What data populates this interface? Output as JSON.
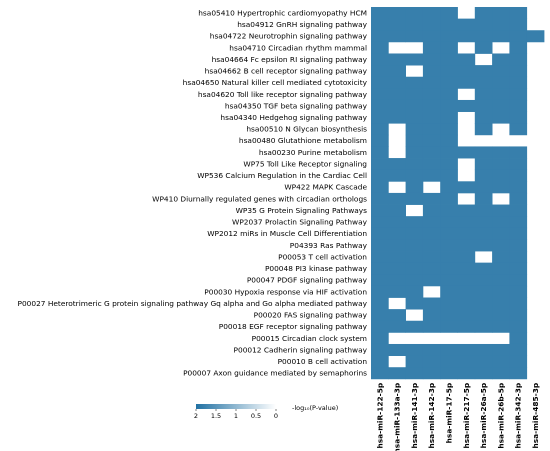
{
  "chart_data": {
    "type": "heatmap",
    "rows": [
      "hsa05410 Hypertrophic cardiomyopathy HCM",
      "hsa04912 GnRH signaling pathway",
      "hsa04722 Neurotrophin signaling pathway",
      "hsa04710 Circadian rhythm mammal",
      "hsa04664 Fc epsilon RI signaling pathway",
      "hsa04662 B cell receptor signaling pathway",
      "hsa04650 Natural killer cell mediated cytotoxicity",
      "hsa04620 Toll like receptor signaling pathway",
      "hsa04350 TGF beta signaling pathway",
      "hsa04340 Hedgehog signaling pathway",
      "hsa00510 N Glycan biosynthesis",
      "hsa00480 Glutathione metabolism",
      "hsa00230 Purine metabolism",
      "WP75 Toll Like Receptor signaling",
      "WP536 Calcium Regulation in the Cardiac Cell",
      "WP422 MAPK Cascade",
      "WP410 Diurnally regulated genes with circadian orthologs",
      "WP35 G Protein Signaling Pathways",
      "WP2037 Prolactin Signaling Pathway",
      "WP2012 miRs in Muscle Cell Differentiation",
      "P04393 Ras Pathway",
      "P00053 T cell activation",
      "P00048 PI3 kinase pathway",
      "P00047 PDGF signaling pathway",
      "P00030 Hypoxia response via HIF activation",
      "P00027 Heterotrimeric G protein signaling pathway Gq alpha and Go alpha mediated pathway",
      "P00020 FAS signaling pathway",
      "P00018 EGF receptor signaling pathway",
      "P00015 Circadian clock system",
      "P00012 Cadherin signaling pathway",
      "P00010 B cell activation",
      "P00007 Axon guidance mediated by semaphorins"
    ],
    "columns": [
      "hsa-miR-122-5p",
      "hsa-miR-133a-3p",
      "hsa-miR-141-3p",
      "hsa-miR-142-3p",
      "hsa-miR-17-5p",
      "hsa-miR-217-5p",
      "hsa-miR-26a-5p",
      "hsa-miR-26b-5p",
      "hsa-miR-342-3p",
      "hsa-miR-485-3p"
    ],
    "values": [
      [
        1.8,
        1.8,
        1.8,
        1.8,
        1.8,
        null,
        1.8,
        1.8,
        1.8,
        null
      ],
      [
        1.8,
        1.8,
        1.8,
        1.8,
        1.8,
        1.8,
        1.8,
        1.8,
        1.8,
        null
      ],
      [
        1.8,
        1.8,
        1.8,
        1.8,
        1.8,
        1.8,
        1.8,
        1.8,
        1.8,
        1.8
      ],
      [
        1.8,
        null,
        null,
        1.8,
        1.8,
        null,
        1.8,
        null,
        1.8,
        null
      ],
      [
        1.8,
        1.8,
        1.8,
        1.8,
        1.8,
        1.8,
        null,
        1.8,
        1.8,
        null
      ],
      [
        1.8,
        1.8,
        null,
        1.8,
        1.8,
        1.8,
        1.8,
        1.8,
        1.8,
        null
      ],
      [
        1.8,
        1.8,
        1.8,
        1.8,
        1.8,
        1.8,
        1.8,
        1.8,
        1.8,
        null
      ],
      [
        1.8,
        1.8,
        1.8,
        1.8,
        1.8,
        null,
        1.8,
        1.8,
        1.8,
        null
      ],
      [
        1.8,
        1.8,
        1.8,
        1.8,
        1.8,
        1.8,
        1.8,
        1.8,
        1.8,
        null
      ],
      [
        1.8,
        1.8,
        1.8,
        1.8,
        1.8,
        null,
        1.8,
        1.8,
        1.8,
        null
      ],
      [
        1.8,
        null,
        1.8,
        1.8,
        1.8,
        null,
        1.8,
        null,
        1.8,
        null
      ],
      [
        1.8,
        null,
        1.8,
        1.8,
        1.8,
        null,
        null,
        null,
        null,
        null
      ],
      [
        1.8,
        null,
        1.8,
        1.8,
        1.8,
        1.8,
        1.8,
        1.8,
        1.8,
        null
      ],
      [
        1.8,
        1.8,
        1.8,
        1.8,
        1.8,
        null,
        1.8,
        1.8,
        1.8,
        null
      ],
      [
        1.8,
        1.8,
        1.8,
        1.8,
        1.8,
        null,
        1.8,
        1.8,
        1.8,
        null
      ],
      [
        1.8,
        null,
        1.8,
        null,
        1.8,
        1.8,
        1.8,
        1.8,
        1.8,
        null
      ],
      [
        1.8,
        1.8,
        1.8,
        1.8,
        1.8,
        null,
        1.8,
        null,
        1.8,
        null
      ],
      [
        1.8,
        1.8,
        null,
        1.8,
        1.8,
        1.8,
        1.8,
        1.8,
        1.8,
        null
      ],
      [
        1.8,
        1.8,
        1.8,
        1.8,
        1.8,
        1.8,
        1.8,
        1.8,
        1.8,
        null
      ],
      [
        1.8,
        1.8,
        1.8,
        1.8,
        1.8,
        1.8,
        1.8,
        1.8,
        1.8,
        null
      ],
      [
        1.8,
        1.8,
        1.8,
        1.8,
        1.8,
        1.8,
        1.8,
        1.8,
        1.8,
        null
      ],
      [
        1.8,
        1.8,
        1.8,
        1.8,
        1.8,
        1.8,
        null,
        1.8,
        1.8,
        null
      ],
      [
        1.8,
        1.8,
        1.8,
        1.8,
        1.8,
        1.8,
        1.8,
        1.8,
        1.8,
        null
      ],
      [
        1.8,
        1.8,
        1.8,
        1.8,
        1.8,
        1.8,
        1.8,
        1.8,
        1.8,
        null
      ],
      [
        1.8,
        1.8,
        1.8,
        null,
        1.8,
        1.8,
        1.8,
        1.8,
        1.8,
        null
      ],
      [
        1.8,
        null,
        1.8,
        1.8,
        1.8,
        1.8,
        1.8,
        1.8,
        1.8,
        null
      ],
      [
        1.8,
        1.8,
        null,
        1.8,
        1.8,
        1.8,
        1.8,
        1.8,
        1.8,
        null
      ],
      [
        1.8,
        1.8,
        1.8,
        1.8,
        1.8,
        1.8,
        1.8,
        1.8,
        1.8,
        null
      ],
      [
        1.8,
        null,
        null,
        null,
        null,
        null,
        null,
        null,
        1.8,
        null
      ],
      [
        1.8,
        1.8,
        1.8,
        1.8,
        1.8,
        1.8,
        1.8,
        1.8,
        1.8,
        null
      ],
      [
        1.8,
        null,
        1.8,
        1.8,
        1.8,
        1.8,
        1.8,
        1.8,
        1.8,
        null
      ],
      [
        1.8,
        1.8,
        1.8,
        1.8,
        1.8,
        1.8,
        1.8,
        1.8,
        1.8,
        null
      ]
    ],
    "colorbar": {
      "label": "-log₁₀(P-value)",
      "range": [
        0,
        2
      ],
      "ticks": [
        "2",
        "1.5",
        "1",
        "0.5",
        "0"
      ],
      "colors": {
        "high": "#2171a3",
        "low": "#ffffff"
      }
    },
    "grid": false
  }
}
